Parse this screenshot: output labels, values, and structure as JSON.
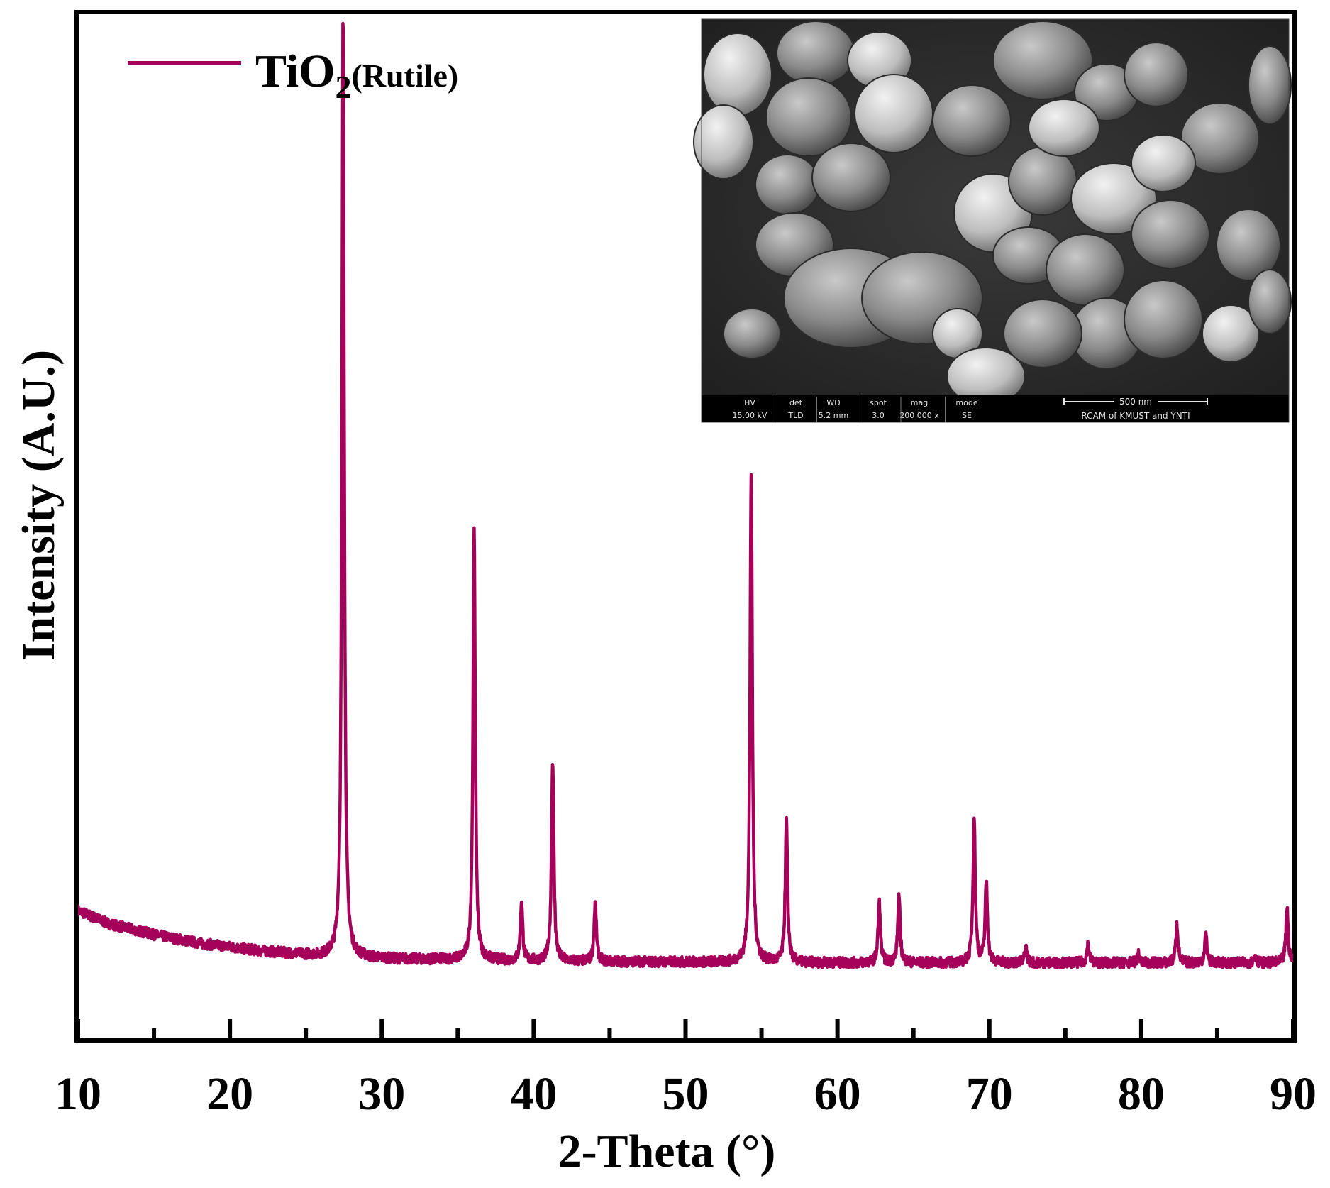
{
  "chart_data": {
    "type": "line",
    "xlabel": "2-Theta (°)",
    "ylabel": "Intensity (A.U.)",
    "xlim": [
      10,
      90
    ],
    "ylim": [
      0,
      1200
    ],
    "xticks": [
      10,
      20,
      30,
      40,
      50,
      60,
      70,
      80,
      90
    ],
    "minor_xticks": [
      15,
      25,
      35,
      45,
      55,
      65,
      75,
      85
    ],
    "grid": false,
    "legend_position": "top-left",
    "series": [
      {
        "name": "TiO2(Rutile)",
        "legend_main": "TiO",
        "legend_sub": "2",
        "legend_suffix": "(Rutile)",
        "color": "#a5005a",
        "baseline": [
          [
            10,
            150
          ],
          [
            12,
            135
          ],
          [
            15,
            122
          ],
          [
            18,
            112
          ],
          [
            22,
            103
          ],
          [
            26,
            97
          ],
          [
            30,
            94
          ],
          [
            40,
            91
          ],
          [
            50,
            90
          ],
          [
            60,
            89
          ],
          [
            70,
            89
          ],
          [
            80,
            89
          ],
          [
            90,
            89
          ]
        ],
        "peaks": [
          {
            "x": 27.45,
            "height": 1100
          },
          {
            "x": 36.08,
            "height": 500
          },
          {
            "x": 39.2,
            "height": 70
          },
          {
            "x": 41.25,
            "height": 235
          },
          {
            "x": 44.05,
            "height": 68
          },
          {
            "x": 54.32,
            "height": 570
          },
          {
            "x": 56.64,
            "height": 165
          },
          {
            "x": 62.75,
            "height": 70
          },
          {
            "x": 64.05,
            "height": 78
          },
          {
            "x": 69.0,
            "height": 170
          },
          {
            "x": 69.8,
            "height": 95
          },
          {
            "x": 72.4,
            "height": 18
          },
          {
            "x": 76.5,
            "height": 22
          },
          {
            "x": 79.8,
            "height": 10
          },
          {
            "x": 82.35,
            "height": 45
          },
          {
            "x": 84.25,
            "height": 33
          },
          {
            "x": 87.5,
            "height": 10
          },
          {
            "x": 89.6,
            "height": 65
          }
        ]
      }
    ]
  },
  "inset": {
    "kind": "SEM micrograph",
    "info_bar": [
      {
        "key": "HV",
        "value": "15.00 kV"
      },
      {
        "key": "det",
        "value": "TLD"
      },
      {
        "key": "WD",
        "value": "5.2 mm"
      },
      {
        "key": "spot",
        "value": "3.0"
      },
      {
        "key": "mag",
        "value": "200 000 x"
      },
      {
        "key": "mode",
        "value": "SE"
      }
    ],
    "scale_label": "500 nm",
    "lab_label": "RCAM of KMUST and YNTI"
  }
}
